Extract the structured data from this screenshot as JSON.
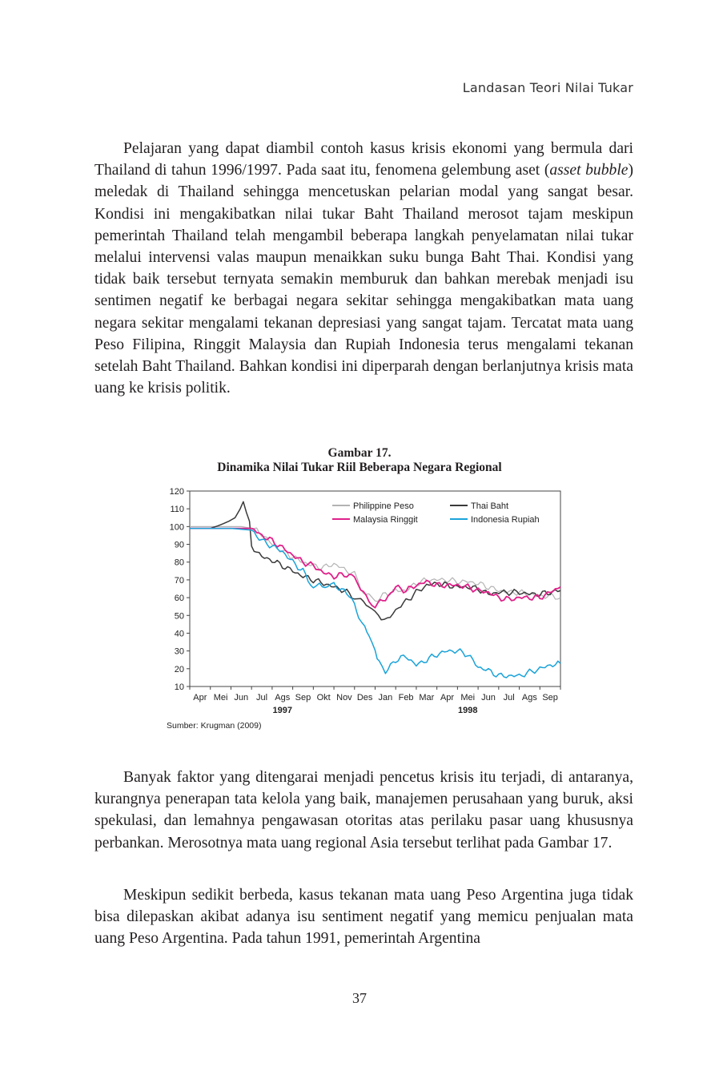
{
  "header": "Landasan Teori Nilai Tukar",
  "paragraph1": {
    "before_italic": "Pelajaran yang dapat diambil contoh kasus krisis ekonomi yang bermula dari Thailand di tahun 1996/1997. Pada saat itu, fenomena gelembung aset (",
    "italic": "asset bubble",
    "after_italic": ") meledak di Thailand sehingga mencetuskan pelarian modal yang sangat besar. Kondisi ini mengakibatkan nilai tukar Baht Thailand merosot tajam meskipun pemerintah Thailand telah mengambil beberapa langkah penyelamatan nilai tukar melalui intervensi valas maupun menaikkan suku bunga Baht Thai. Kondisi yang tidak baik tersebut ternyata semakin memburuk dan bahkan merebak menjadi isu sentimen negatif ke berbagai negara sekitar sehingga mengakibatkan mata uang negara sekitar mengalami tekanan depresiasi yang sangat tajam. Tercatat mata uang Peso Filipina, Ringgit Malaysia dan Rupiah Indonesia terus mengalami tekanan setelah Baht Thailand. Bahkan kondisi ini diperparah dengan berlanjutnya krisis mata uang ke krisis politik."
  },
  "figure": {
    "number": "Gambar 17.",
    "caption": "Dinamika Nilai Tukar Riil Beberapa Negara Regional",
    "source": "Sumber: Krugman (2009)"
  },
  "chart_data": {
    "type": "line",
    "title": "",
    "xlabel": "",
    "ylabel": "",
    "ylim": [
      10,
      120
    ],
    "yticks": [
      10,
      20,
      30,
      40,
      50,
      60,
      70,
      80,
      90,
      100,
      110,
      120
    ],
    "x_months": [
      "Apr",
      "Mei",
      "Jun",
      "Jul",
      "Ags",
      "Sep",
      "Okt",
      "Nov",
      "Des",
      "Jan",
      "Feb",
      "Mar",
      "Apr",
      "Mei",
      "Jun",
      "Jul",
      "Ags",
      "Sep"
    ],
    "year_labels": [
      {
        "label": "1997",
        "month_index": 4
      },
      {
        "label": "1998",
        "month_index": 13
      }
    ],
    "legend_placement": "top-right",
    "grid": false,
    "series": [
      {
        "name": "Philippine Peso",
        "color": "#b3b3b3",
        "x": [
          0,
          1,
          2,
          2.5,
          3,
          3.5,
          4,
          4.5,
          5,
          5.5,
          6,
          6.5,
          7,
          7.5,
          8,
          8.3,
          8.7,
          9,
          9.5,
          10,
          10.5,
          11,
          11.5,
          12,
          12.5,
          13,
          13.5,
          14,
          14.5,
          15,
          15.5,
          16,
          16.5,
          17,
          17.5,
          18
        ],
        "y": [
          100,
          100,
          100,
          100,
          99,
          96,
          90,
          86,
          83,
          80,
          78,
          77,
          79,
          76,
          73,
          65,
          61,
          58,
          62,
          64,
          64,
          68,
          70,
          70,
          70,
          69,
          69,
          68,
          66,
          64,
          63,
          63,
          62,
          61,
          61,
          60
        ]
      },
      {
        "name": "Thai Baht",
        "color": "#3a3a3a",
        "x": [
          0,
          1,
          1.5,
          1.9,
          2.2,
          2.45,
          2.6,
          2.75,
          2.9,
          3.0,
          3.5,
          4,
          4.5,
          5,
          5.5,
          6,
          6.5,
          7,
          7.5,
          8,
          8.3,
          8.7,
          9,
          9.3,
          9.6,
          10,
          10.5,
          11,
          11.5,
          12,
          12.5,
          13,
          13.5,
          14,
          14.5,
          15,
          15.5,
          16,
          16.5,
          17,
          17.5,
          18
        ],
        "y": [
          99,
          99,
          101,
          103,
          105,
          110,
          114,
          108,
          103,
          89,
          83,
          81,
          78,
          75,
          72,
          70,
          68,
          66,
          64,
          60,
          58,
          56,
          51,
          47,
          49,
          53,
          58,
          63,
          67,
          68,
          67,
          66,
          66,
          65,
          62,
          63,
          63,
          63,
          62,
          62,
          63,
          64
        ]
      },
      {
        "name": "Malaysia Ringgit",
        "color": "#e0218a",
        "x": [
          0,
          1,
          2,
          3,
          3.5,
          4,
          4.5,
          5,
          5.5,
          6,
          6.5,
          7,
          7.5,
          8,
          8.3,
          8.7,
          9,
          9.5,
          10,
          10.5,
          11,
          11.5,
          12,
          12.5,
          13,
          13.5,
          14,
          14.5,
          15,
          15.5,
          16,
          16.5,
          17,
          17.5,
          18
        ],
        "y": [
          99,
          99,
          99,
          99,
          95,
          92,
          88,
          84,
          80,
          78,
          74,
          72,
          73,
          72,
          65,
          58,
          56,
          59,
          66,
          64,
          67,
          69,
          67,
          67,
          67,
          66,
          64,
          63,
          60,
          59,
          60,
          60,
          60,
          63,
          66
        ]
      },
      {
        "name": "Indonesia Rupiah",
        "color": "#1aa3d9",
        "x": [
          0,
          1,
          2,
          3,
          3.5,
          4,
          4.5,
          5,
          5.5,
          6,
          6.3,
          6.7,
          7,
          7.5,
          8,
          8.2,
          8.5,
          8.7,
          9,
          9.2,
          9.5,
          10,
          10.5,
          11,
          11.5,
          12,
          12.5,
          13,
          13.5,
          14,
          14.5,
          15,
          15.5,
          16,
          16.5,
          17,
          17.5,
          18
        ],
        "y": [
          99,
          99,
          99,
          98,
          92,
          89,
          86,
          80,
          75,
          65,
          68,
          66,
          67,
          64,
          57,
          48,
          44,
          38,
          30,
          23,
          18,
          25,
          27,
          22,
          25,
          28,
          30,
          30,
          28,
          21,
          19,
          16,
          16,
          16,
          18,
          20,
          22,
          23
        ]
      }
    ]
  },
  "paragraph2": "Banyak faktor yang ditengarai menjadi pencetus krisis itu terjadi, di antaranya, kurangnya penerapan tata kelola yang baik, manajemen perusahaan yang buruk, aksi spekulasi, dan lemahnya pengawasan otoritas atas perilaku pasar uang khususnya perbankan. Merosotnya mata uang regional Asia tersebut terlihat pada Gambar 17.",
  "paragraph3": "Meskipun sedikit berbeda, kasus tekanan mata uang Peso Argentina juga tidak bisa dilepaskan akibat adanya isu sentiment negatif yang memicu penjualan mata uang Peso Argentina. Pada tahun 1991, pemerintah Argentina",
  "page_number": "37"
}
